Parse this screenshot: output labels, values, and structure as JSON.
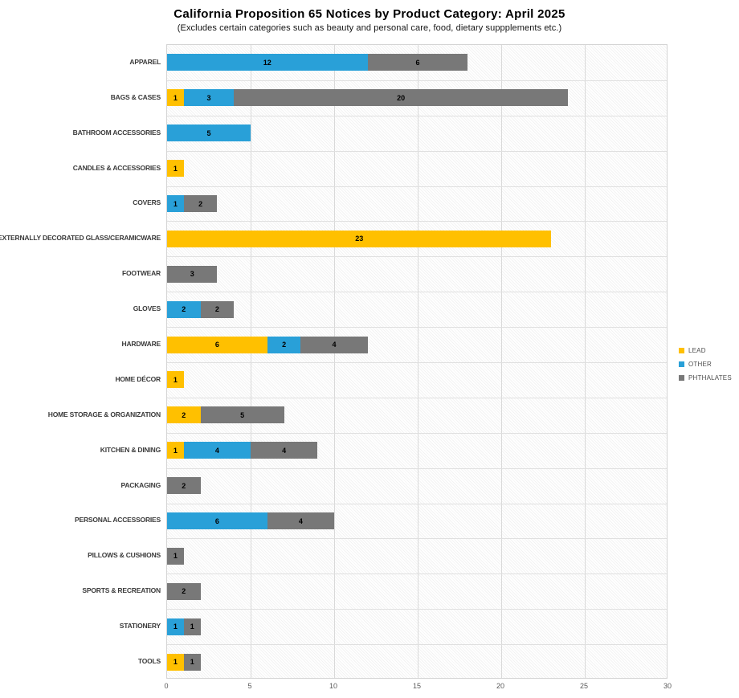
{
  "header": {
    "title": "California Proposition 65 Notices by Product Category: April 2025",
    "subtitle": "(Excludes certain categories such as beauty and personal care, food, dietary suppplements etc.)"
  },
  "chart_data": {
    "type": "bar",
    "orientation": "horizontal",
    "stacked": true,
    "title": "California Proposition 65 Notices by Product Category: April 2025",
    "subtitle": "(Excludes certain categories such as beauty and personal care, food, dietary suppplements etc.)",
    "xlabel": "",
    "ylabel": "",
    "xlim": [
      0,
      30
    ],
    "xticks": [
      0,
      5,
      10,
      15,
      20,
      25,
      30
    ],
    "grid": true,
    "legend_position": "right",
    "plot_background": "fine-diagonal-hatch",
    "categories": [
      "APPAREL",
      "BAGS & CASES",
      "BATHROOM ACCESSORIES",
      "CANDLES & ACCESSORIES",
      "COVERS",
      "EXTERNALLY DECORATED GLASS/CERAMICWARE",
      "FOOTWEAR",
      "GLOVES",
      "HARDWARE",
      "HOME DÉCOR",
      "HOME STORAGE & ORGANIZATION",
      "KITCHEN & DINING",
      "PACKAGING",
      "PERSONAL ACCESSORIES",
      "PILLOWS & CUSHIONS",
      "SPORTS & RECREATION",
      "STATIONERY",
      "TOOLS"
    ],
    "series": [
      {
        "name": "LEAD",
        "color": "#FFC000",
        "values": [
          0,
          1,
          0,
          1,
          0,
          23,
          0,
          0,
          6,
          1,
          2,
          1,
          0,
          0,
          0,
          0,
          0,
          1
        ]
      },
      {
        "name": "OTHER",
        "color": "#29A0D8",
        "values": [
          12,
          3,
          5,
          0,
          1,
          0,
          0,
          2,
          2,
          0,
          0,
          4,
          0,
          6,
          0,
          0,
          1,
          0
        ]
      },
      {
        "name": "PHTHALATES",
        "color": "#787878",
        "values": [
          6,
          20,
          0,
          0,
          2,
          0,
          3,
          2,
          4,
          0,
          5,
          4,
          2,
          4,
          1,
          2,
          1,
          1
        ]
      }
    ]
  }
}
